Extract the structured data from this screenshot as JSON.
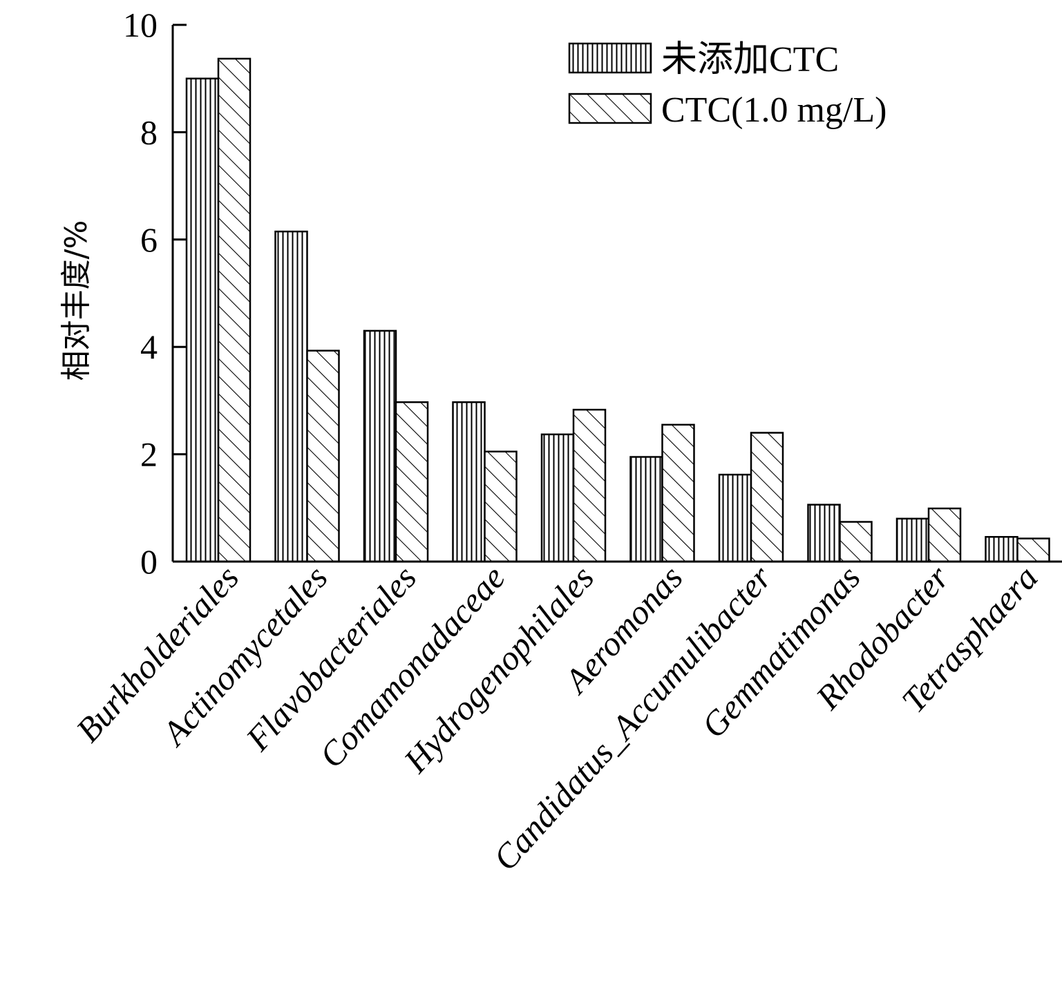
{
  "chart_data": {
    "type": "bar",
    "ylabel": "相对丰度/%",
    "xlabel": "",
    "ylim": [
      0,
      10
    ],
    "yticks": [
      0,
      2,
      4,
      6,
      8,
      10
    ],
    "legend_position": "top-right",
    "categories": [
      "Burkholderiales",
      "Actinomycetales",
      "Flavobacteriales",
      "Comamonadaceae",
      "Hydrogenophilales",
      "Aeromonas",
      "Candidatus_Accumulibacter",
      "Gemmatimonas",
      "Rhodobacter",
      "Tetrasphaera"
    ],
    "series": [
      {
        "name": "未添加CTC",
        "pattern": "vertical-lines",
        "values": [
          9.0,
          6.15,
          4.3,
          2.97,
          2.37,
          1.95,
          1.62,
          1.06,
          0.8,
          0.46
        ]
      },
      {
        "name": "CTC(1.0 mg/L)",
        "pattern": "diagonal-lines",
        "values": [
          9.37,
          3.93,
          2.97,
          2.05,
          2.83,
          2.55,
          2.4,
          0.74,
          0.99,
          0.43
        ]
      }
    ],
    "colors": {
      "bar_fill": "#ffffff",
      "stroke": "#000000"
    }
  }
}
